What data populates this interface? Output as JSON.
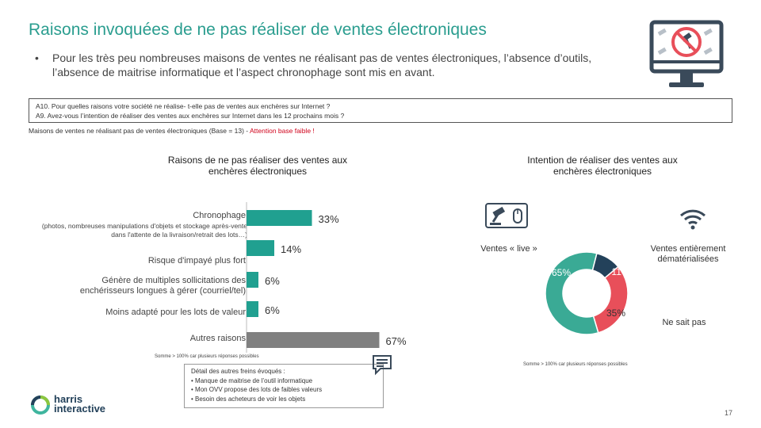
{
  "header": {
    "title": "Raisons invoquées de ne pas réaliser de ventes électroniques",
    "bullet": "Pour les très peu nombreuses maisons de ventes ne réalisant pas de ventes électroniques, l’absence d’outils, l’absence de maitrise informatique et l’aspect chronophage sont mis en avant."
  },
  "question": {
    "line1": "A10. Pour quelles raisons votre société ne réalise- t-elle pas de ventes aux enchères sur Internet ?",
    "line2": "A9. Avez-vous l’intention de réaliser des ventes aux enchères sur Internet dans les 12 prochains mois ?"
  },
  "base": {
    "text": "Maisons de ventes ne réalisant pas de ventes électroniques (Base = 13) - ",
    "warning": "Attention base faible !"
  },
  "colors": {
    "teal": "#20a090",
    "grey": "#808080",
    "dark": "#23415a",
    "red": "#e84f5a",
    "donut_teal": "#3aaa95"
  },
  "chart_data": [
    {
      "type": "bar",
      "orientation": "horizontal",
      "title": "Raisons de ne pas réaliser des ventes aux enchères électroniques",
      "categories": [
        "Chronophage",
        "Risque d'impayé plus fort",
        "Génère de multiples sollicitations des enchérisseurs longues à gérer (courriel/tel)",
        "Moins adapté pour les lots de valeur",
        "Autres raisons"
      ],
      "sublabels": [
        "(photos, nombreuses manipulations d'objets et stockage après-vente dans l'attente de la livraison/retrait des lots…)",
        "",
        "",
        "",
        ""
      ],
      "values": [
        33,
        14,
        6,
        6,
        67
      ],
      "value_labels": [
        "33%",
        "14%",
        "6%",
        "6%",
        "67%"
      ],
      "bar_colors": [
        "#20a090",
        "#20a090",
        "#20a090",
        "#20a090",
        "#808080"
      ],
      "xlim": [
        0,
        100
      ],
      "note": "Somme > 100% car plusieurs réponses possibles"
    },
    {
      "type": "pie",
      "variant": "donut",
      "title": "Intention de réaliser des ventes aux enchères électroniques",
      "labels": [
        "Ventes « live »",
        "Ventes entièrement dématérialisées",
        "Ne sait pas"
      ],
      "values": [
        65,
        11,
        35
      ],
      "value_labels": [
        "65%",
        "11%",
        "35%"
      ],
      "colors": [
        "#3aaa95",
        "#23415a",
        "#e84f5a"
      ],
      "note": "Somme > 100% car plusieurs réponses possibles"
    }
  ],
  "detail": {
    "title": "Détail des autres freins évoqués :",
    "items": [
      "• Manque de maitrise de l’outil informatique",
      "• Mon OVV propose des lots de faibles valeurs",
      "• Besoin des acheteurs de voir les objets"
    ]
  },
  "footer": {
    "logo_line1": "harris",
    "logo_line2": "interactive",
    "page_number": "17"
  },
  "icons": {
    "no_computer": "monitor-no-gavel-icon",
    "gavel_mouse": "gavel-mouse-icon",
    "wifi": "wifi-icon",
    "chat": "chat-icon",
    "logo": "harris-logo-icon"
  }
}
